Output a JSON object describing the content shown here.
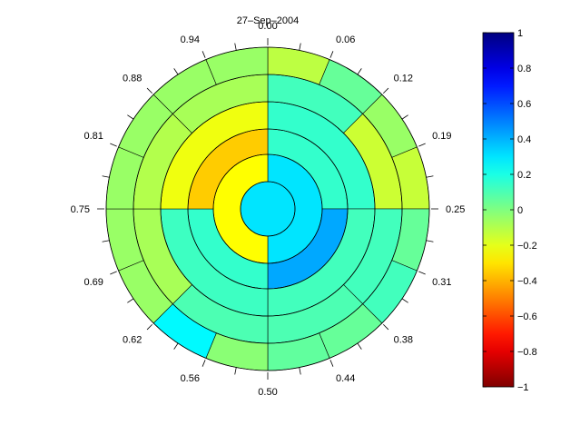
{
  "chart_data": {
    "type": "polar-heatmap",
    "title": "27–Sep–2004",
    "angular_tick_labels": [
      "0.00",
      "0.06",
      "0.12",
      "0.19",
      "0.25",
      "0.31",
      "0.38",
      "0.44",
      "0.50",
      "0.56",
      "0.62",
      "0.69",
      "0.75",
      "0.81",
      "0.88",
      "0.94"
    ],
    "colorbar": {
      "min": -1,
      "max": 1,
      "tick_values": [
        1,
        0.8,
        0.6,
        0.4,
        0.2,
        0,
        -0.2,
        -0.4,
        -0.6,
        -0.8,
        -1
      ],
      "tick_labels": [
        "1",
        "0.8",
        "0.6",
        "0.4",
        "0.2",
        "0",
        "−0.2",
        "−0.4",
        "−0.6",
        "−0.8",
        "−1"
      ],
      "colormap": "jet"
    },
    "rings": [
      {
        "ring": 0,
        "sectors": 1,
        "values": [
          0.3
        ]
      },
      {
        "ring": 1,
        "sectors": 2,
        "values": [
          0.3,
          -0.25
        ]
      },
      {
        "ring": 2,
        "sectors": 4,
        "values": [
          0.15,
          0.42,
          0.15,
          -0.35
        ]
      },
      {
        "ring": 3,
        "sectors": 4,
        "values": [
          0.15,
          0.12,
          0.13,
          -0.22
        ]
      },
      {
        "ring": 4,
        "sectors": 8,
        "values": [
          0.12,
          -0.15,
          0.12,
          0.1,
          0.1,
          -0.08,
          -0.1,
          -0.08
        ]
      },
      {
        "ring": 5,
        "sectors": 16,
        "values": [
          -0.12,
          0.05,
          -0.05,
          -0.14,
          0.05,
          0.12,
          0.05,
          0.06,
          -0.02,
          0.26,
          -0.05,
          -0.05,
          -0.05,
          -0.05,
          -0.05,
          -0.05
        ]
      }
    ]
  }
}
